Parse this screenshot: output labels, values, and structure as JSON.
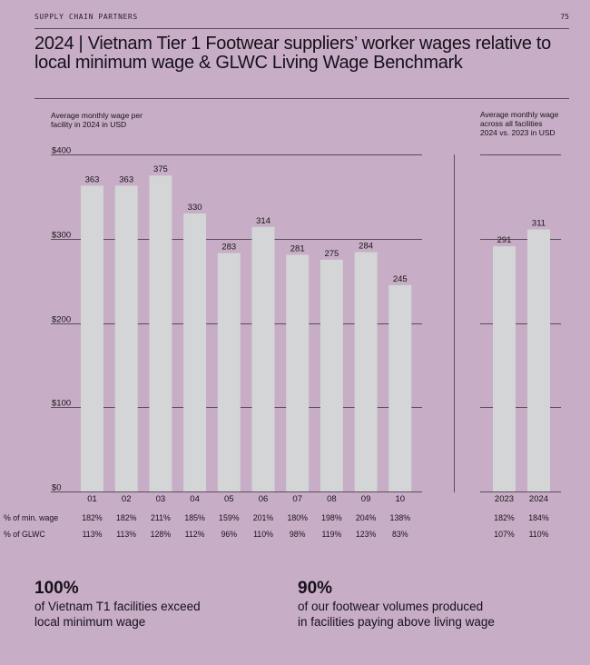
{
  "header": {
    "section": "SUPPLY CHAIN PARTNERS",
    "page_number": "75",
    "title": "2024 | Vietnam Tier 1 Footwear suppliers’ worker wages relative to local minimum wage & GLWC Living Wage Benchmark"
  },
  "colors": {
    "background": "#c7adc6",
    "bar": "#d3d5d6",
    "line": "#5c4b5a",
    "text": "#1a1418"
  },
  "chart_data": [
    {
      "type": "bar",
      "title": "Average monthly wage per facility in 2024 in USD",
      "caption_lines": [
        "Average monthly wage per",
        "facility in 2024 in USD"
      ],
      "categories": [
        "01",
        "02",
        "03",
        "04",
        "05",
        "06",
        "07",
        "08",
        "09",
        "10"
      ],
      "values": [
        363,
        363,
        375,
        330,
        283,
        314,
        281,
        275,
        284,
        245
      ],
      "ylim": [
        0,
        400
      ],
      "yticks": [
        0,
        100,
        200,
        300,
        400
      ],
      "ytick_labels": [
        "$0",
        "$100",
        "$200",
        "$300",
        "$400"
      ],
      "grid": true,
      "rows": [
        {
          "label": "% of min. wage",
          "values": [
            "182%",
            "182%",
            "211%",
            "185%",
            "159%",
            "201%",
            "180%",
            "198%",
            "204%",
            "138%"
          ]
        },
        {
          "label": "% of GLWC",
          "values": [
            "113%",
            "113%",
            "128%",
            "112%",
            "96%",
            "110%",
            "98%",
            "119%",
            "123%",
            "83%"
          ]
        }
      ]
    },
    {
      "type": "bar",
      "title": "Average monthly wage across all facilities 2024 vs. 2023 in USD",
      "caption_lines": [
        "Average monthly wage",
        "across all facilities",
        "2024 vs. 2023 in USD"
      ],
      "categories": [
        "2023",
        "2024"
      ],
      "values": [
        291,
        311
      ],
      "ylim": [
        0,
        400
      ],
      "yticks": [
        0,
        100,
        200,
        300,
        400
      ],
      "grid": true,
      "rows": [
        {
          "label": "% of min. wage",
          "values": [
            "182%",
            "184%"
          ]
        },
        {
          "label": "% of GLWC",
          "values": [
            "107%",
            "110%"
          ]
        }
      ]
    }
  ],
  "stats": [
    {
      "value": "100%",
      "line1": "of Vietnam T1 facilities exceed",
      "line2": "local minimum wage"
    },
    {
      "value": "90%",
      "line1": "of our footwear volumes produced",
      "line2": "in facilities paying above living wage"
    }
  ]
}
